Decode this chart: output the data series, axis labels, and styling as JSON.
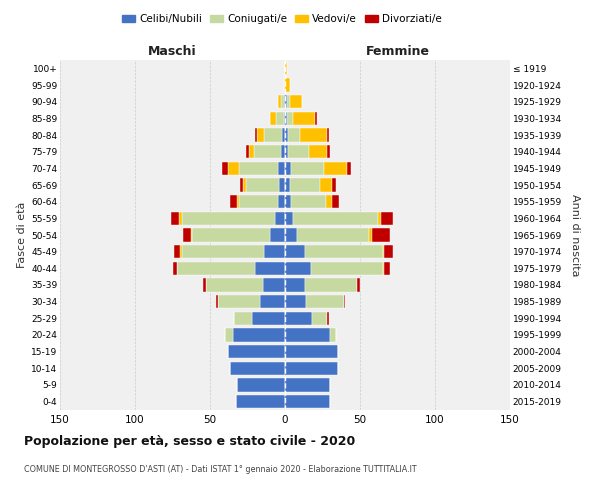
{
  "age_groups": [
    "0-4",
    "5-9",
    "10-14",
    "15-19",
    "20-24",
    "25-29",
    "30-34",
    "35-39",
    "40-44",
    "45-49",
    "50-54",
    "55-59",
    "60-64",
    "65-69",
    "70-74",
    "75-79",
    "80-84",
    "85-89",
    "90-94",
    "95-99",
    "100+"
  ],
  "birth_years": [
    "2015-2019",
    "2010-2014",
    "2005-2009",
    "2000-2004",
    "1995-1999",
    "1990-1994",
    "1985-1989",
    "1980-1984",
    "1975-1979",
    "1970-1974",
    "1965-1969",
    "1960-1964",
    "1955-1959",
    "1950-1954",
    "1945-1949",
    "1940-1944",
    "1935-1939",
    "1930-1934",
    "1925-1929",
    "1920-1924",
    "≤ 1919"
  ],
  "maschi": {
    "celibi": [
      33,
      32,
      37,
      38,
      35,
      22,
      17,
      15,
      20,
      14,
      10,
      7,
      5,
      4,
      5,
      3,
      2,
      1,
      1,
      0,
      0
    ],
    "coniugati": [
      0,
      0,
      0,
      0,
      5,
      12,
      28,
      38,
      52,
      55,
      52,
      62,
      26,
      22,
      26,
      18,
      12,
      5,
      2,
      0,
      0
    ],
    "vedovi": [
      0,
      0,
      0,
      0,
      0,
      0,
      0,
      0,
      0,
      1,
      1,
      2,
      1,
      2,
      7,
      3,
      5,
      4,
      2,
      1,
      0
    ],
    "divorziati": [
      0,
      0,
      0,
      0,
      0,
      0,
      1,
      2,
      3,
      4,
      5,
      5,
      5,
      2,
      4,
      2,
      1,
      0,
      0,
      0,
      0
    ]
  },
  "femmine": {
    "nubili": [
      30,
      30,
      35,
      35,
      30,
      18,
      14,
      13,
      17,
      13,
      8,
      5,
      4,
      3,
      4,
      2,
      2,
      1,
      1,
      0,
      0
    ],
    "coniugate": [
      0,
      0,
      0,
      0,
      4,
      10,
      25,
      35,
      48,
      52,
      48,
      57,
      23,
      20,
      22,
      14,
      8,
      4,
      2,
      0,
      0
    ],
    "vedove": [
      0,
      0,
      0,
      0,
      0,
      0,
      0,
      0,
      1,
      1,
      2,
      2,
      4,
      8,
      15,
      12,
      18,
      15,
      8,
      3,
      1
    ],
    "divorziate": [
      0,
      0,
      0,
      0,
      0,
      1,
      1,
      2,
      4,
      6,
      12,
      8,
      5,
      3,
      3,
      2,
      1,
      1,
      0,
      0,
      0
    ]
  },
  "colors": {
    "celibi": "#4472c4",
    "coniugati": "#c5d9a0",
    "vedovi": "#ffc000",
    "divorziati": "#c00000"
  },
  "xlim": 150,
  "title": "Popolazione per età, sesso e stato civile - 2020",
  "subtitle": "COMUNE DI MONTEGROSSO D'ASTI (AT) - Dati ISTAT 1° gennaio 2020 - Elaborazione TUTTITALIA.IT",
  "ylabel": "Fasce di età",
  "ylabel_right": "Anni di nascita",
  "plot_bgcolor": "#f0f0f0",
  "fig_bgcolor": "#ffffff"
}
